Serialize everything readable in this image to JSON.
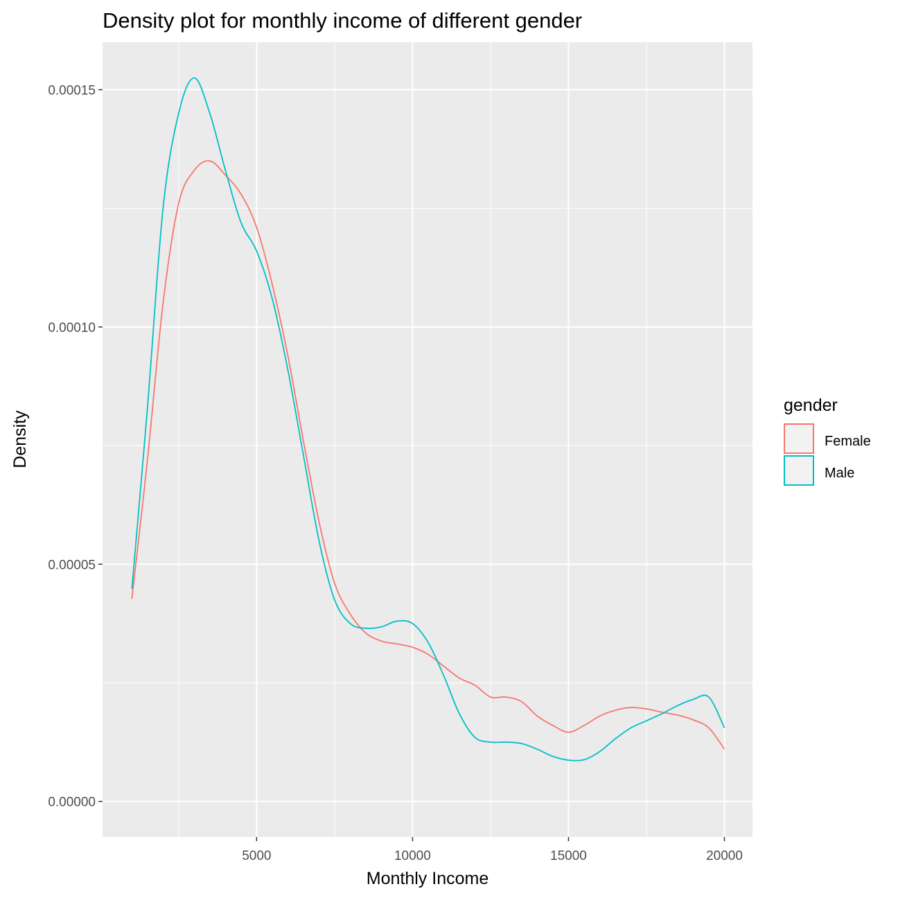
{
  "chart_data": {
    "type": "line",
    "title": "Density plot for monthly income of different gender",
    "xlabel": "Monthly Income",
    "ylabel": "Density",
    "xlim": [
      60,
      20900
    ],
    "ylim": [
      -7.5e-06,
      0.00016
    ],
    "x_ticks": [
      5000,
      10000,
      15000,
      20000
    ],
    "x_tick_labels": [
      "5000",
      "10000",
      "15000",
      "20000"
    ],
    "x_minor_ticks": [
      2500,
      7500,
      12500,
      17500
    ],
    "y_ticks": [
      0,
      5e-05,
      0.0001,
      0.00015
    ],
    "y_tick_labels": [
      "0.00000",
      "0.00005",
      "0.00010",
      "0.00015"
    ],
    "y_minor_ticks": [
      2.5e-05,
      7.5e-05,
      0.000125
    ],
    "grid": true,
    "legend": {
      "title": "gender",
      "placement": "right"
    },
    "series": [
      {
        "name": "Female",
        "color": "#F8766D",
        "x": [
          1000,
          1500,
          2000,
          2500,
          3000,
          3500,
          4000,
          4500,
          5000,
          5500,
          6000,
          6500,
          7000,
          7500,
          8000,
          8500,
          9000,
          9500,
          10000,
          10500,
          11000,
          11500,
          12000,
          12500,
          13000,
          13500,
          14000,
          14500,
          15000,
          15500,
          16000,
          16500,
          17000,
          17500,
          18000,
          18500,
          19000,
          19500,
          20000
        ],
        "y": [
          4.27e-05,
          7.2e-05,
          0.000105,
          0.000126,
          0.000133,
          0.000135,
          0.000132,
          0.000128,
          0.000121,
          0.000109,
          9.4e-05,
          7.6e-05,
          5.9e-05,
          4.6e-05,
          3.95e-05,
          3.55e-05,
          3.38e-05,
          3.32e-05,
          3.25e-05,
          3.1e-05,
          2.85e-05,
          2.6e-05,
          2.45e-05,
          2.2e-05,
          2.2e-05,
          2.1e-05,
          1.8e-05,
          1.6e-05,
          1.46e-05,
          1.6e-05,
          1.8e-05,
          1.92e-05,
          1.98e-05,
          1.95e-05,
          1.88e-05,
          1.82e-05,
          1.72e-05,
          1.55e-05,
          1.1e-05
        ]
      },
      {
        "name": "Male",
        "color": "#00BFC4",
        "x": [
          1000,
          1500,
          2000,
          2500,
          3000,
          3500,
          4000,
          4500,
          5000,
          5500,
          6000,
          6500,
          7000,
          7500,
          8000,
          8500,
          9000,
          9500,
          10000,
          10500,
          11000,
          11500,
          12000,
          12500,
          13000,
          13500,
          14000,
          14500,
          15000,
          15500,
          16000,
          16500,
          17000,
          17500,
          18000,
          18500,
          19000,
          19500,
          20000
        ],
        "y": [
          4.48e-05,
          8.3e-05,
          0.000125,
          0.000145,
          0.0001525,
          0.000145,
          0.000133,
          0.000122,
          0.000116,
          0.000106,
          9.1e-05,
          7.3e-05,
          5.5e-05,
          4.25e-05,
          3.75e-05,
          3.65e-05,
          3.68e-05,
          3.8e-05,
          3.75e-05,
          3.35e-05,
          2.65e-05,
          1.85e-05,
          1.35e-05,
          1.25e-05,
          1.25e-05,
          1.22e-05,
          1.1e-05,
          9.5e-06,
          8.7e-06,
          8.8e-06,
          1.05e-05,
          1.32e-05,
          1.55e-05,
          1.7e-05,
          1.85e-05,
          2.02e-05,
          2.15e-05,
          2.2e-05,
          1.55e-05
        ]
      }
    ]
  }
}
